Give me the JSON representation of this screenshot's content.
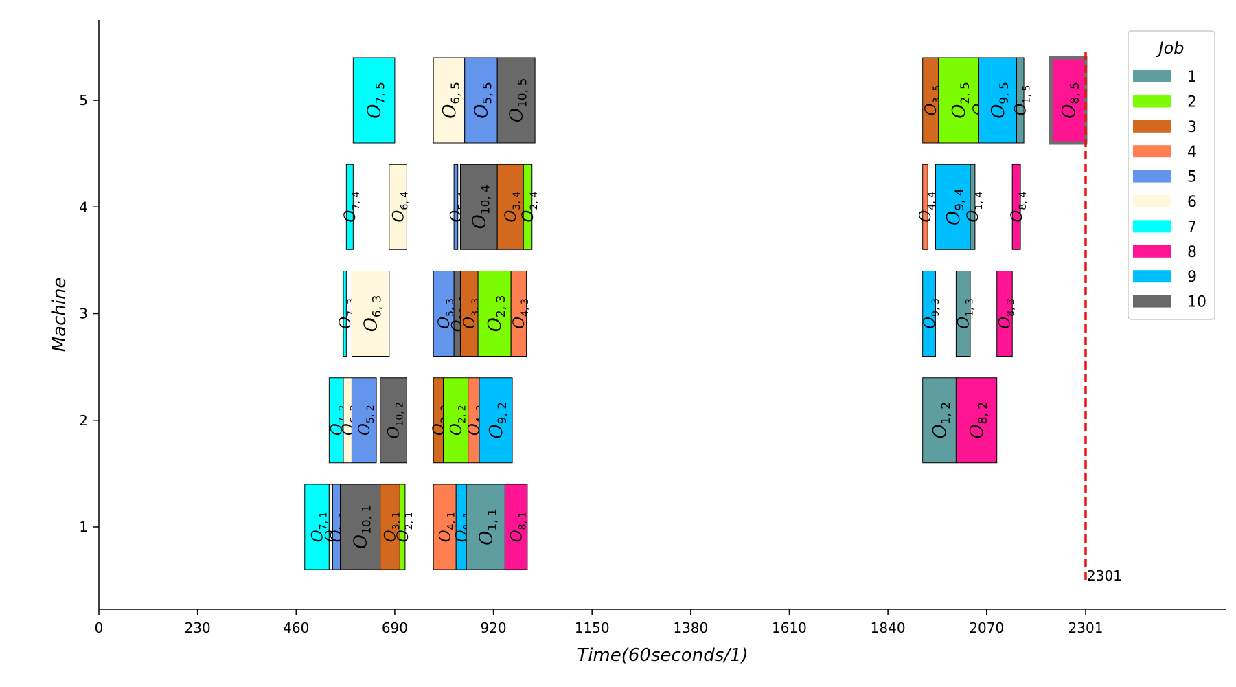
{
  "chart_data": {
    "type": "gantt",
    "xlabel": "Time(60seconds/1)",
    "ylabel": "Machine",
    "x_ticks": [
      0,
      230,
      460,
      690,
      920,
      1150,
      1380,
      1610,
      1840,
      2070,
      2301
    ],
    "y_ticks": [
      1,
      2,
      3,
      4,
      5
    ],
    "xlim": [
      0,
      2620
    ],
    "ylim": [
      0.25,
      5.75
    ],
    "makespan": 2301,
    "makespan_label": "2301",
    "makespan_color": "#ee1111",
    "legend": {
      "title": "Job",
      "placement": "top-right",
      "entries": [
        {
          "job": 1,
          "label": "1",
          "color": "#5f9ea0"
        },
        {
          "job": 2,
          "label": "2",
          "color": "#7cfc00"
        },
        {
          "job": 3,
          "label": "3",
          "color": "#d2691e"
        },
        {
          "job": 4,
          "label": "4",
          "color": "#ff7f50"
        },
        {
          "job": 5,
          "label": "5",
          "color": "#6495ed"
        },
        {
          "job": 6,
          "label": "6",
          "color": "#fff8dc"
        },
        {
          "job": 7,
          "label": "7",
          "color": "#00ffff"
        },
        {
          "job": 8,
          "label": "8",
          "color": "#ff1493"
        },
        {
          "job": 9,
          "label": "9",
          "color": "#00bfff"
        },
        {
          "job": 10,
          "label": "10",
          "color": "#696969"
        }
      ]
    },
    "operations": [
      {
        "machine": 1,
        "job": 7,
        "op": 1,
        "start": 480,
        "end": 537
      },
      {
        "machine": 1,
        "job": 6,
        "op": 1,
        "start": 537,
        "end": 545
      },
      {
        "machine": 1,
        "job": 5,
        "op": 1,
        "start": 545,
        "end": 563
      },
      {
        "machine": 1,
        "job": 10,
        "op": 1,
        "start": 563,
        "end": 656
      },
      {
        "machine": 1,
        "job": 3,
        "op": 1,
        "start": 656,
        "end": 702
      },
      {
        "machine": 1,
        "job": 2,
        "op": 1,
        "start": 702,
        "end": 714
      },
      {
        "machine": 1,
        "job": 4,
        "op": 1,
        "start": 780,
        "end": 833
      },
      {
        "machine": 1,
        "job": 9,
        "op": 1,
        "start": 833,
        "end": 857
      },
      {
        "machine": 1,
        "job": 1,
        "op": 1,
        "start": 857,
        "end": 947
      },
      {
        "machine": 1,
        "job": 8,
        "op": 1,
        "start": 947,
        "end": 999
      },
      {
        "machine": 2,
        "job": 7,
        "op": 2,
        "start": 537,
        "end": 570
      },
      {
        "machine": 2,
        "job": 6,
        "op": 2,
        "start": 570,
        "end": 590
      },
      {
        "machine": 2,
        "job": 5,
        "op": 2,
        "start": 590,
        "end": 647
      },
      {
        "machine": 2,
        "job": 10,
        "op": 2,
        "start": 656,
        "end": 718
      },
      {
        "machine": 2,
        "job": 3,
        "op": 2,
        "start": 780,
        "end": 803
      },
      {
        "machine": 2,
        "job": 2,
        "op": 2,
        "start": 803,
        "end": 861
      },
      {
        "machine": 2,
        "job": 4,
        "op": 2,
        "start": 861,
        "end": 887
      },
      {
        "machine": 2,
        "job": 9,
        "op": 2,
        "start": 887,
        "end": 964
      },
      {
        "machine": 2,
        "job": 1,
        "op": 2,
        "start": 1921,
        "end": 1999
      },
      {
        "machine": 2,
        "job": 8,
        "op": 2,
        "start": 1999,
        "end": 2094
      },
      {
        "machine": 3,
        "job": 7,
        "op": 3,
        "start": 570,
        "end": 577
      },
      {
        "machine": 3,
        "job": 6,
        "op": 3,
        "start": 590,
        "end": 677
      },
      {
        "machine": 3,
        "job": 5,
        "op": 3,
        "start": 780,
        "end": 828
      },
      {
        "machine": 3,
        "job": 10,
        "op": 3,
        "start": 828,
        "end": 843
      },
      {
        "machine": 3,
        "job": 3,
        "op": 3,
        "start": 843,
        "end": 884
      },
      {
        "machine": 3,
        "job": 2,
        "op": 3,
        "start": 884,
        "end": 961
      },
      {
        "machine": 3,
        "job": 4,
        "op": 3,
        "start": 961,
        "end": 997
      },
      {
        "machine": 3,
        "job": 9,
        "op": 3,
        "start": 1921,
        "end": 1951
      },
      {
        "machine": 3,
        "job": 1,
        "op": 3,
        "start": 1999,
        "end": 2032
      },
      {
        "machine": 3,
        "job": 8,
        "op": 3,
        "start": 2094,
        "end": 2130
      },
      {
        "machine": 4,
        "job": 7,
        "op": 4,
        "start": 577,
        "end": 593
      },
      {
        "machine": 4,
        "job": 6,
        "op": 4,
        "start": 677,
        "end": 718
      },
      {
        "machine": 4,
        "job": 5,
        "op": 4,
        "start": 828,
        "end": 837
      },
      {
        "machine": 4,
        "job": 10,
        "op": 4,
        "start": 843,
        "end": 929
      },
      {
        "machine": 4,
        "job": 3,
        "op": 4,
        "start": 929,
        "end": 990
      },
      {
        "machine": 4,
        "job": 2,
        "op": 4,
        "start": 990,
        "end": 1010
      },
      {
        "machine": 4,
        "job": 4,
        "op": 4,
        "start": 1921,
        "end": 1933
      },
      {
        "machine": 4,
        "job": 9,
        "op": 4,
        "start": 1951,
        "end": 2032
      },
      {
        "machine": 4,
        "job": 1,
        "op": 4,
        "start": 2032,
        "end": 2043
      },
      {
        "machine": 4,
        "job": 8,
        "op": 4,
        "start": 2130,
        "end": 2149
      },
      {
        "machine": 5,
        "job": 7,
        "op": 5,
        "start": 593,
        "end": 690
      },
      {
        "machine": 5,
        "job": 6,
        "op": 5,
        "start": 780,
        "end": 853
      },
      {
        "machine": 5,
        "job": 5,
        "op": 5,
        "start": 853,
        "end": 929
      },
      {
        "machine": 5,
        "job": 10,
        "op": 5,
        "start": 929,
        "end": 1017
      },
      {
        "machine": 5,
        "job": 3,
        "op": 5,
        "start": 1921,
        "end": 1958
      },
      {
        "machine": 5,
        "job": 2,
        "op": 5,
        "start": 1958,
        "end": 2052
      },
      {
        "machine": 5,
        "job": 4,
        "op": 5,
        "start": 2052,
        "end": 2052
      },
      {
        "machine": 5,
        "job": 9,
        "op": 5,
        "start": 2052,
        "end": 2140
      },
      {
        "machine": 5,
        "job": 1,
        "op": 5,
        "start": 2140,
        "end": 2157
      },
      {
        "machine": 5,
        "job": 8,
        "op": 5,
        "start": 2220,
        "end": 2301
      }
    ]
  }
}
